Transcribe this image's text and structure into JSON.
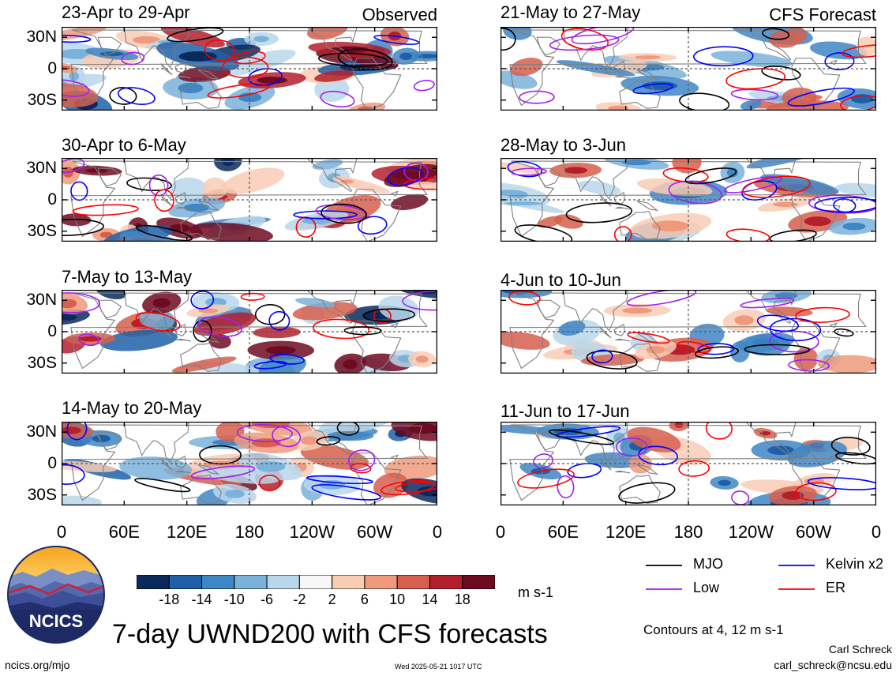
{
  "chart_data": {
    "type": "heatmap",
    "title": "7-day UWND200 with CFS forecasts",
    "variable": "UWND200",
    "units": "m s-1",
    "columns": [
      {
        "label": "Observed",
        "panels": [
          "23-Apr to 29-Apr",
          "30-Apr to 6-May",
          "7-May to 13-May",
          "14-May to 20-May"
        ]
      },
      {
        "label": "CFS Forecast",
        "panels": [
          "21-May to 27-May",
          "28-May to 3-Jun",
          "4-Jun to 10-Jun",
          "11-Jun to 17-Jun"
        ]
      }
    ],
    "lat_ticks": [
      "30N",
      "0",
      "30S"
    ],
    "lat_values": [
      30,
      0,
      -30
    ],
    "ylim": [
      -40,
      40
    ],
    "lon_ticks": [
      "0",
      "60E",
      "120E",
      "180",
      "120W",
      "60W",
      "0"
    ],
    "lon_values": [
      0,
      60,
      120,
      180,
      240,
      300,
      360
    ],
    "xlim": [
      0,
      360
    ],
    "colorbar": {
      "tick_labels": [
        "-18",
        "-14",
        "-10",
        "-6",
        "-2",
        "2",
        "6",
        "10",
        "14",
        "18"
      ],
      "levels": [
        -18,
        -14,
        -10,
        -6,
        -2,
        2,
        6,
        10,
        14,
        18
      ],
      "colors": [
        "#0a2a5c",
        "#1f5fa8",
        "#3f86c4",
        "#7ab2da",
        "#b9d7ec",
        "#f7f7f7",
        "#f9cdb5",
        "#ef9a7c",
        "#d65f4d",
        "#b3202c",
        "#6e0a21"
      ],
      "units": "m s-1"
    },
    "contour_legend": [
      {
        "label": "MJO",
        "color": "#000000"
      },
      {
        "label": "Kelvin x2",
        "color": "#0000ff"
      },
      {
        "label": "Low",
        "color": "#a020f0"
      },
      {
        "label": "ER",
        "color": "#ff0000"
      }
    ],
    "contour_note": "Contours at 4, 12 m s-1"
  },
  "branding": {
    "logo_text": "NCICS",
    "site": "ncics.org/mjo",
    "timestamp": "Wed 2025-05-21 1017 UTC",
    "author": "Carl Schreck",
    "email": "carl_schreck@ncsu.edu"
  }
}
